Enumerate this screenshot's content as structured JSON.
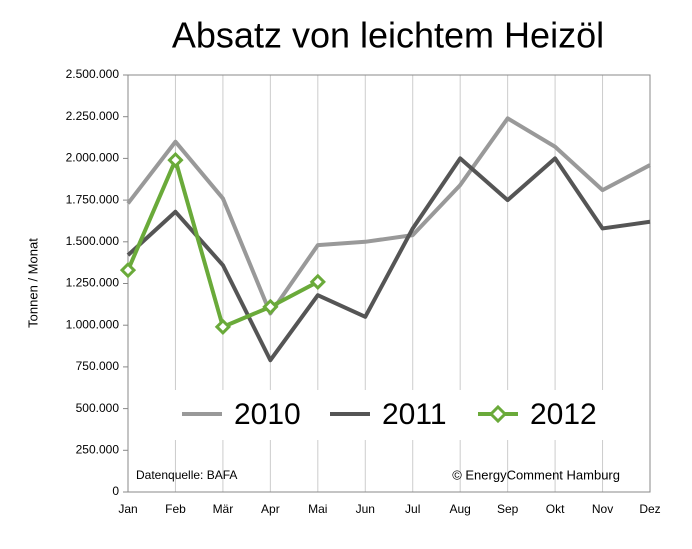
{
  "chart_data": {
    "type": "line",
    "title": "Absatz von leichtem Heizöl",
    "y_label": "Tonnen / Monat",
    "annotations": [
      "Datenquelle: BAFA",
      "© EnergyComment Hamburg"
    ],
    "categories": [
      "Jan",
      "Feb",
      "Mär",
      "Apr",
      "Mai",
      "Jun",
      "Jul",
      "Aug",
      "Sep",
      "Okt",
      "Nov",
      "Dez"
    ],
    "series": [
      {
        "name": "2010",
        "color": "#999999",
        "marker": false,
        "values": [
          1730000,
          2100000,
          1760000,
          1070000,
          1480000,
          1500000,
          1540000,
          1840000,
          2240000,
          2070000,
          1810000,
          1960000
        ]
      },
      {
        "name": "2011",
        "color": "#555555",
        "marker": false,
        "values": [
          1420000,
          1680000,
          1360000,
          790000,
          1180000,
          1050000,
          1580000,
          2000000,
          1750000,
          2000000,
          1580000,
          1620000
        ]
      },
      {
        "name": "2012",
        "color": "#6aaa3a",
        "marker": true,
        "values": [
          1330000,
          1990000,
          990000,
          1110000,
          1260000,
          null,
          null,
          null,
          null,
          null,
          null,
          null
        ]
      }
    ],
    "ylim": [
      0,
      2500000
    ],
    "yticks": [
      0,
      {
        "value": 250000,
        "label": "250.000"
      },
      {
        "value": 500000,
        "label": "500.000"
      },
      {
        "value": 750000,
        "label": "750.000"
      },
      {
        "value": 1000000,
        "label": "1.000.000"
      },
      {
        "value": 1250000,
        "label": "1.250.000"
      },
      {
        "value": 1500000,
        "label": "1.500.000"
      },
      {
        "value": 1750000,
        "label": "1.750.000"
      },
      {
        "value": 2000000,
        "label": "2.000.000"
      },
      {
        "value": 2250000,
        "label": "2.250.000"
      },
      {
        "value": 2500000,
        "label": "2.500.000"
      }
    ],
    "grid": true
  }
}
